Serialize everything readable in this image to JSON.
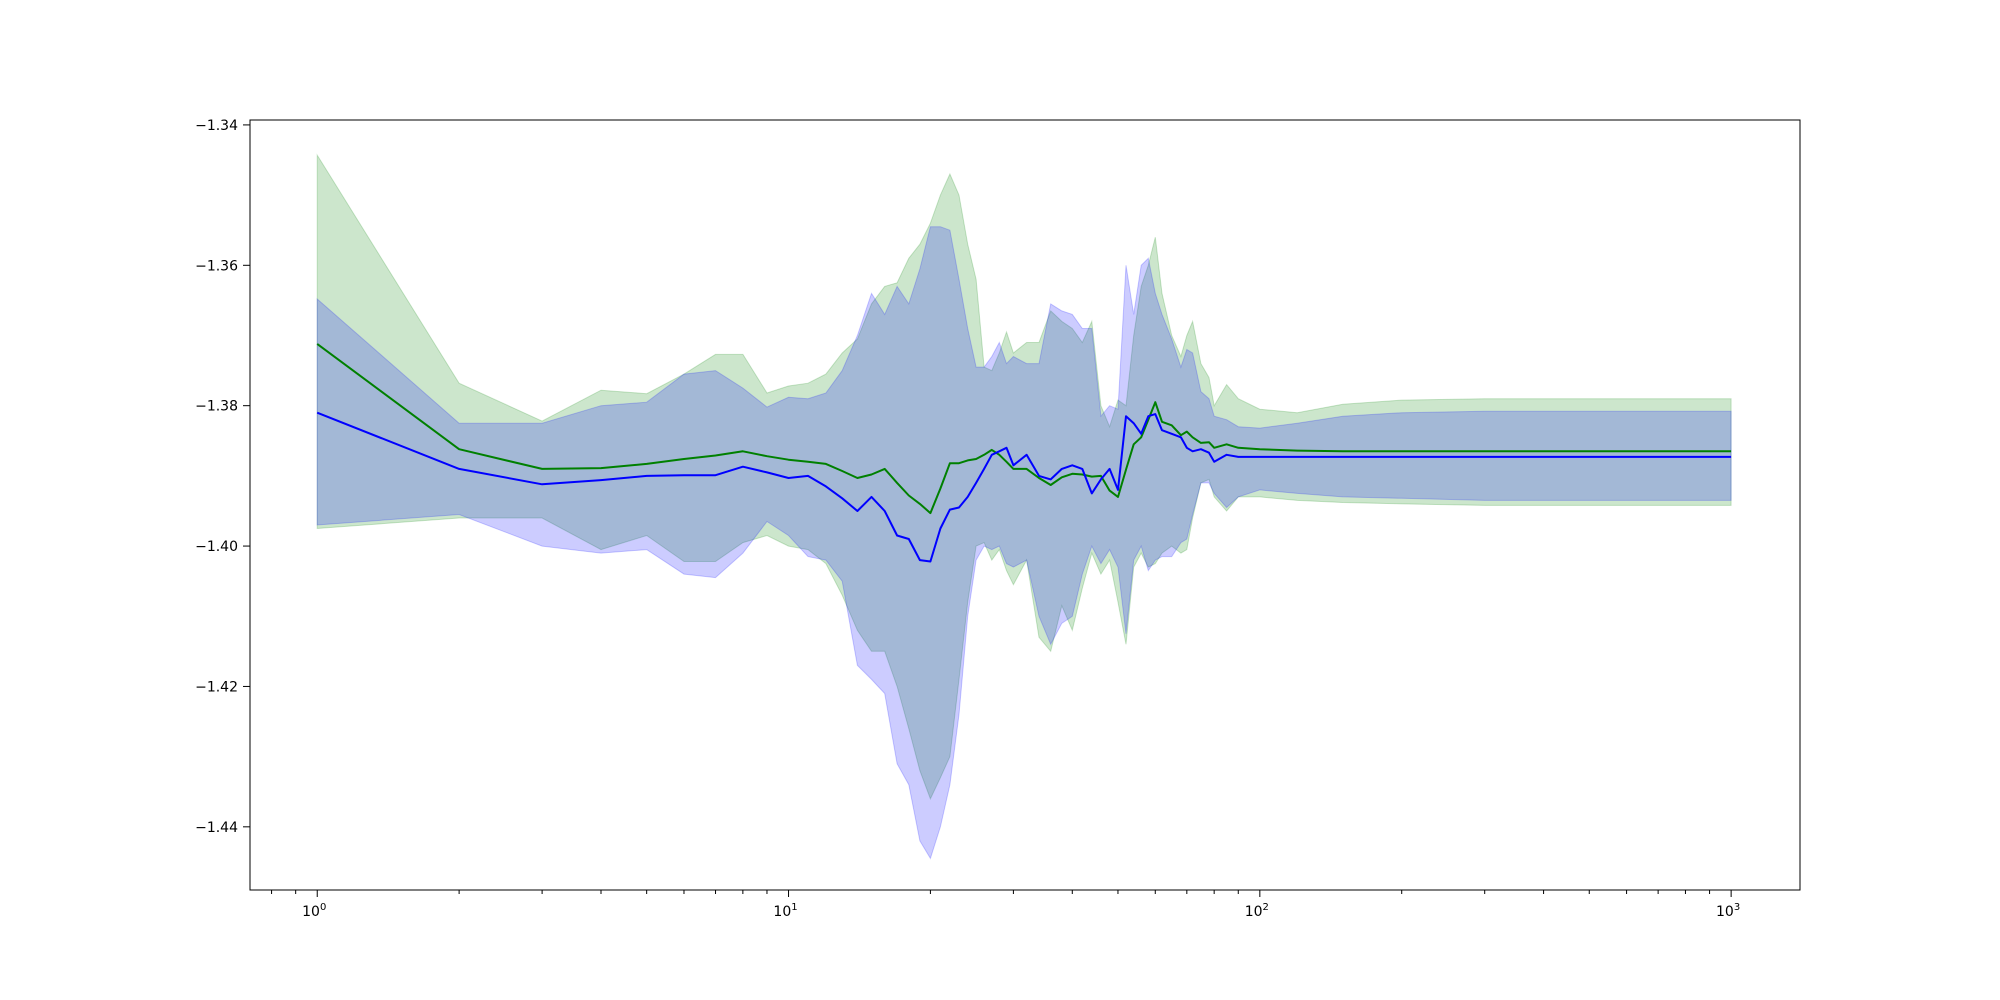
{
  "chart_data": {
    "type": "line",
    "title": "",
    "xlabel": "",
    "ylabel": "",
    "xscale": "log",
    "xlim": [
      0.72,
      1400
    ],
    "ylim": [
      -1.449,
      -1.3393
    ],
    "grid": false,
    "legend": "none",
    "x_ticks": [
      {
        "value": 1,
        "base": "10",
        "exp": "0"
      },
      {
        "value": 10,
        "base": "10",
        "exp": "1"
      },
      {
        "value": 100,
        "base": "10",
        "exp": "2"
      },
      {
        "value": 1000,
        "base": "10",
        "exp": "3"
      }
    ],
    "y_ticks": [
      {
        "value": -1.34,
        "label": "−1.34"
      },
      {
        "value": -1.36,
        "label": "−1.36"
      },
      {
        "value": -1.38,
        "label": "−1.38"
      },
      {
        "value": -1.4,
        "label": "−1.40"
      },
      {
        "value": -1.42,
        "label": "−1.42"
      },
      {
        "value": -1.44,
        "label": "−1.44"
      }
    ],
    "series": [
      {
        "color": "#008000",
        "band_color": "#008000",
        "band_opacity": 0.2,
        "x": [
          1,
          2,
          3,
          4,
          5,
          6,
          7,
          8,
          9,
          10,
          11,
          12,
          13,
          14,
          15,
          16,
          17,
          18,
          19,
          20,
          21,
          22,
          23,
          24,
          25,
          26,
          27,
          28,
          29,
          30,
          32,
          34,
          36,
          38,
          40,
          42,
          44,
          46,
          48,
          50,
          52,
          54,
          56,
          58,
          60,
          62,
          65,
          68,
          70,
          72,
          75,
          78,
          80,
          85,
          90,
          100,
          120,
          150,
          200,
          300,
          500,
          700,
          1000
        ],
        "y": [
          -1.3712,
          -1.3862,
          -1.389,
          -1.3889,
          -1.3883,
          -1.3876,
          -1.3871,
          -1.3865,
          -1.3872,
          -1.3877,
          -1.388,
          -1.3883,
          -1.3893,
          -1.3903,
          -1.3898,
          -1.389,
          -1.391,
          -1.3928,
          -1.394,
          -1.3953,
          -1.3918,
          -1.3882,
          -1.3882,
          -1.3878,
          -1.3876,
          -1.387,
          -1.3863,
          -1.387,
          -1.388,
          -1.389,
          -1.389,
          -1.3903,
          -1.3913,
          -1.3902,
          -1.3897,
          -1.3898,
          -1.3901,
          -1.39,
          -1.3921,
          -1.393,
          -1.3891,
          -1.3855,
          -1.3845,
          -1.382,
          -1.3795,
          -1.3823,
          -1.3828,
          -1.3842,
          -1.3837,
          -1.3845,
          -1.3853,
          -1.3852,
          -1.386,
          -1.3855,
          -1.386,
          -1.3862,
          -1.3864,
          -1.3865,
          -1.3865,
          -1.3865,
          -1.3865,
          -1.3865,
          -1.3865
        ],
        "upper": [
          -1.3443,
          -1.3768,
          -1.3822,
          -1.3778,
          -1.3783,
          -1.3755,
          -1.3727,
          -1.3727,
          -1.3782,
          -1.3772,
          -1.3768,
          -1.3755,
          -1.3725,
          -1.3705,
          -1.3655,
          -1.363,
          -1.3625,
          -1.359,
          -1.357,
          -1.354,
          -1.35,
          -1.347,
          -1.35,
          -1.357,
          -1.362,
          -1.3745,
          -1.375,
          -1.3725,
          -1.3695,
          -1.3725,
          -1.371,
          -1.371,
          -1.3665,
          -1.368,
          -1.369,
          -1.371,
          -1.368,
          -1.38,
          -1.383,
          -1.3792,
          -1.38,
          -1.37,
          -1.363,
          -1.36,
          -1.356,
          -1.364,
          -1.37,
          -1.373,
          -1.37,
          -1.368,
          -1.374,
          -1.376,
          -1.38,
          -1.377,
          -1.379,
          -1.3805,
          -1.381,
          -1.3798,
          -1.3792,
          -1.379,
          -1.379,
          -1.379,
          -1.379
        ],
        "lower": [
          -1.3975,
          -1.396,
          -1.396,
          -1.4005,
          -1.3985,
          -1.4022,
          -1.4022,
          -1.3995,
          -1.3985,
          -1.4,
          -1.4005,
          -1.4025,
          -1.407,
          -1.412,
          -1.415,
          -1.415,
          -1.42,
          -1.426,
          -1.432,
          -1.436,
          -1.433,
          -1.43,
          -1.419,
          -1.408,
          -1.4,
          -1.3995,
          -1.402,
          -1.4005,
          -1.4035,
          -1.4055,
          -1.402,
          -1.413,
          -1.415,
          -1.4085,
          -1.412,
          -1.406,
          -1.401,
          -1.404,
          -1.402,
          -1.408,
          -1.414,
          -1.403,
          -1.401,
          -1.403,
          -1.4025,
          -1.401,
          -1.4,
          -1.401,
          -1.4005,
          -1.396,
          -1.391,
          -1.3905,
          -1.393,
          -1.395,
          -1.393,
          -1.393,
          -1.3935,
          -1.3938,
          -1.394,
          -1.3942,
          -1.3942,
          -1.3942,
          -1.3942
        ]
      },
      {
        "color": "#0000ff",
        "band_color": "#0000ff",
        "band_opacity": 0.2,
        "x": [
          1,
          2,
          3,
          4,
          5,
          6,
          7,
          8,
          9,
          10,
          11,
          12,
          13,
          14,
          15,
          16,
          17,
          18,
          19,
          20,
          21,
          22,
          23,
          24,
          25,
          26,
          27,
          28,
          29,
          30,
          32,
          34,
          36,
          38,
          40,
          42,
          44,
          46,
          48,
          50,
          52,
          54,
          56,
          58,
          60,
          62,
          65,
          68,
          70,
          72,
          75,
          78,
          80,
          85,
          90,
          100,
          120,
          150,
          200,
          300,
          500,
          700,
          1000
        ],
        "y": [
          -1.381,
          -1.389,
          -1.3912,
          -1.3906,
          -1.39,
          -1.3899,
          -1.3899,
          -1.3887,
          -1.3895,
          -1.3903,
          -1.39,
          -1.3915,
          -1.3932,
          -1.395,
          -1.393,
          -1.395,
          -1.3985,
          -1.399,
          -1.402,
          -1.4022,
          -1.3975,
          -1.3948,
          -1.3945,
          -1.393,
          -1.391,
          -1.389,
          -1.387,
          -1.3865,
          -1.386,
          -1.3885,
          -1.387,
          -1.39,
          -1.3905,
          -1.389,
          -1.3885,
          -1.389,
          -1.3925,
          -1.3905,
          -1.389,
          -1.392,
          -1.3815,
          -1.3825,
          -1.384,
          -1.3815,
          -1.3812,
          -1.3835,
          -1.384,
          -1.3845,
          -1.386,
          -1.3865,
          -1.3862,
          -1.3867,
          -1.388,
          -1.387,
          -1.3873,
          -1.3873,
          -1.3873,
          -1.3873,
          -1.3873,
          -1.3873,
          -1.3873,
          -1.3873,
          -1.3873
        ],
        "upper": [
          -1.3648,
          -1.3825,
          -1.3825,
          -1.38,
          -1.3795,
          -1.3755,
          -1.375,
          -1.3775,
          -1.3802,
          -1.3788,
          -1.379,
          -1.3782,
          -1.375,
          -1.37,
          -1.364,
          -1.367,
          -1.363,
          -1.3655,
          -1.3605,
          -1.3545,
          -1.3545,
          -1.355,
          -1.362,
          -1.369,
          -1.3745,
          -1.3745,
          -1.373,
          -1.371,
          -1.374,
          -1.373,
          -1.374,
          -1.374,
          -1.3655,
          -1.3665,
          -1.367,
          -1.369,
          -1.369,
          -1.3815,
          -1.38,
          -1.3805,
          -1.36,
          -1.367,
          -1.36,
          -1.359,
          -1.364,
          -1.367,
          -1.3705,
          -1.3745,
          -1.372,
          -1.3725,
          -1.378,
          -1.379,
          -1.3815,
          -1.382,
          -1.383,
          -1.3832,
          -1.3825,
          -1.3815,
          -1.381,
          -1.3808,
          -1.3808,
          -1.3808,
          -1.3808
        ],
        "lower": [
          -1.397,
          -1.3955,
          -1.4,
          -1.401,
          -1.4005,
          -1.404,
          -1.4045,
          -1.401,
          -1.3965,
          -1.3985,
          -1.4015,
          -1.402,
          -1.405,
          -1.417,
          -1.419,
          -1.421,
          -1.431,
          -1.434,
          -1.442,
          -1.4445,
          -1.44,
          -1.434,
          -1.424,
          -1.41,
          -1.402,
          -1.4,
          -1.4005,
          -1.4,
          -1.4025,
          -1.403,
          -1.402,
          -1.41,
          -1.414,
          -1.411,
          -1.41,
          -1.404,
          -1.4,
          -1.4025,
          -1.4005,
          -1.403,
          -1.4125,
          -1.402,
          -1.4,
          -1.4035,
          -1.402,
          -1.4015,
          -1.4015,
          -1.3995,
          -1.399,
          -1.3955,
          -1.391,
          -1.391,
          -1.3925,
          -1.3945,
          -1.393,
          -1.392,
          -1.3925,
          -1.393,
          -1.3932,
          -1.3935,
          -1.3935,
          -1.3935,
          -1.3935
        ]
      }
    ]
  }
}
